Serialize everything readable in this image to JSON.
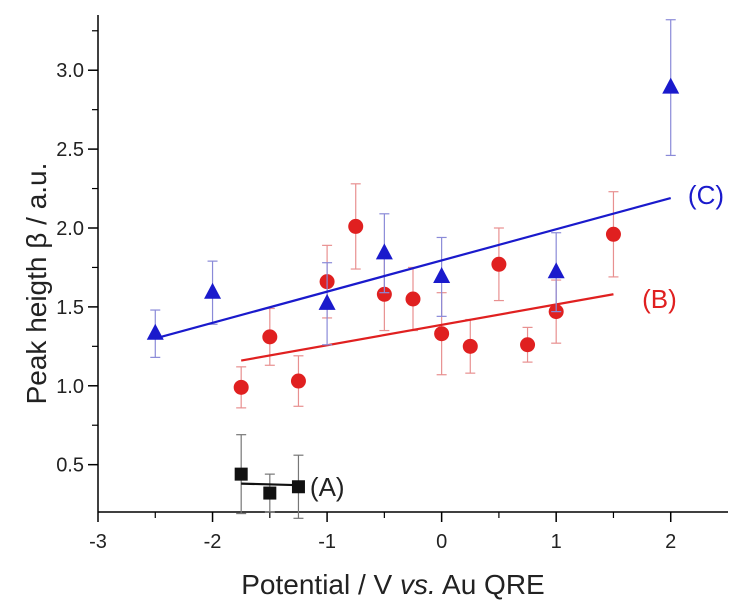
{
  "chart_data": {
    "type": "scatter",
    "title": "",
    "xlabel_parts": [
      {
        "text": "Potential / V ",
        "style": "normal"
      },
      {
        "text": "vs.",
        "style": "italic"
      },
      {
        "text": " Au QRE",
        "style": "normal"
      }
    ],
    "ylabel": "Peak heigth β / a.u.",
    "xlim": [
      -3,
      2.5
    ],
    "ylim": [
      0.2,
      3.35
    ],
    "xticks": [
      -3,
      -2,
      -1,
      0,
      1,
      2
    ],
    "xtick_labels": [
      "-3",
      "-2",
      "-1",
      "0",
      "1",
      "2"
    ],
    "yticks": [
      0.5,
      1.0,
      1.5,
      2.0,
      2.5,
      3.0
    ],
    "ytick_labels": [
      "0.5",
      "1.0",
      "1.5",
      "2.0",
      "2.5",
      "3.0"
    ],
    "grid": false,
    "series": [
      {
        "label": "(A)",
        "marker": "square",
        "color": "#111111",
        "error_color": "#777777",
        "points": [
          {
            "x": -1.75,
            "y": 0.44,
            "err": 0.25
          },
          {
            "x": -1.5,
            "y": 0.32,
            "err": 0.12
          },
          {
            "x": -1.25,
            "y": 0.36,
            "err": 0.2
          }
        ],
        "fit": {
          "x": [
            -1.75,
            -1.25
          ],
          "y": [
            0.38,
            0.37
          ]
        },
        "label_pos": {
          "x": -1.15,
          "y": 0.36
        }
      },
      {
        "label": "(B)",
        "marker": "circle",
        "color": "#e02020",
        "error_color": "#e89090",
        "points": [
          {
            "x": -1.75,
            "y": 0.99,
            "err": 0.13
          },
          {
            "x": -1.5,
            "y": 1.31,
            "err": 0.18
          },
          {
            "x": -1.25,
            "y": 1.03,
            "err": 0.16
          },
          {
            "x": -1.0,
            "y": 1.66,
            "err": 0.23
          },
          {
            "x": -0.75,
            "y": 2.01,
            "err": 0.27
          },
          {
            "x": -0.5,
            "y": 1.58,
            "err": 0.23
          },
          {
            "x": -0.25,
            "y": 1.55,
            "err": 0.2
          },
          {
            "x": 0.0,
            "y": 1.33,
            "err": 0.26
          },
          {
            "x": 0.25,
            "y": 1.25,
            "err": 0.17
          },
          {
            "x": 0.5,
            "y": 1.77,
            "err": 0.23
          },
          {
            "x": 0.75,
            "y": 1.26,
            "err": 0.11
          },
          {
            "x": 1.0,
            "y": 1.47,
            "err": 0.2
          },
          {
            "x": 1.5,
            "y": 1.96,
            "err": 0.27
          }
        ],
        "fit": {
          "x": [
            -1.75,
            1.5
          ],
          "y": [
            1.16,
            1.58
          ]
        },
        "label_pos": {
          "x": 1.75,
          "y": 1.55
        }
      },
      {
        "label": "(C)",
        "marker": "triangle",
        "color": "#1a1acc",
        "error_color": "#8a8ad8",
        "points": [
          {
            "x": -2.5,
            "y": 1.33,
            "err": 0.15
          },
          {
            "x": -2.0,
            "y": 1.59,
            "err": 0.2
          },
          {
            "x": -1.0,
            "y": 1.52,
            "err": 0.26
          },
          {
            "x": -0.5,
            "y": 1.84,
            "err": 0.25
          },
          {
            "x": 0.0,
            "y": 1.69,
            "err": 0.25
          },
          {
            "x": 1.0,
            "y": 1.72,
            "err": 0.25
          },
          {
            "x": 2.0,
            "y": 2.89,
            "err": 0.43
          }
        ],
        "fit": {
          "x": [
            -2.5,
            2.0
          ],
          "y": [
            1.3,
            2.19
          ]
        },
        "label_pos": {
          "x": 2.15,
          "y": 2.21
        }
      }
    ]
  }
}
